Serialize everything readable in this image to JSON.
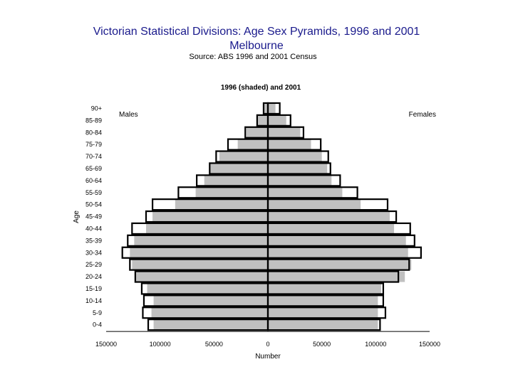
{
  "slide": {
    "title_line1": "Victorian Statistical Divisions:  Age Sex Pyramids, 1996 and 2001",
    "title_line2": "Melbourne",
    "source": "Source:   ABS 1996 and 2001 Census"
  },
  "chart_data": {
    "type": "bar",
    "orientation": "horizontal-pyramid",
    "title": "1996 (shaded) and 2001",
    "xlabel": "Number",
    "ylabel": "Age",
    "left_label": "Males",
    "right_label": "Females",
    "xlim": [
      -150000,
      150000
    ],
    "x_ticks": [
      -150000,
      -100000,
      -50000,
      0,
      50000,
      100000,
      150000
    ],
    "x_tick_labels": [
      "150000",
      "100000",
      "50000",
      "0",
      "50000",
      "100000",
      "150000"
    ],
    "categories": [
      "0-4",
      "5-9",
      "10-14",
      "15-19",
      "20-24",
      "25-29",
      "30-34",
      "35-39",
      "40-44",
      "45-49",
      "50-54",
      "55-59",
      "60-64",
      "65-69",
      "70-74",
      "75-79",
      "80-84",
      "85-89",
      "90+"
    ],
    "series": [
      {
        "name": "1996",
        "shaded": true,
        "males": [
          106000,
          108000,
          106000,
          112000,
          123000,
          126000,
          128000,
          124000,
          113000,
          107000,
          86000,
          67000,
          59000,
          54000,
          45000,
          28000,
          20000,
          10000,
          4000
        ],
        "females": [
          102000,
          102000,
          102000,
          105000,
          127000,
          133000,
          130000,
          128000,
          117000,
          113000,
          86000,
          69000,
          59000,
          55000,
          50000,
          40000,
          30000,
          17000,
          7000
        ]
      },
      {
        "name": "2001",
        "shaded": false,
        "males": [
          111000,
          116000,
          115000,
          117000,
          123000,
          128000,
          135000,
          130000,
          126000,
          113000,
          107000,
          83000,
          66000,
          54000,
          48000,
          37000,
          21000,
          10000,
          4000
        ],
        "females": [
          104000,
          109000,
          107000,
          107000,
          121000,
          131000,
          142000,
          136000,
          132000,
          119000,
          111000,
          83000,
          67000,
          58000,
          56000,
          49000,
          33000,
          21000,
          11000
        ]
      }
    ],
    "colors": {
      "shaded": "#c0c0c0",
      "outline": "#000000",
      "text": "#000000",
      "title": "#1a1a8c"
    }
  }
}
